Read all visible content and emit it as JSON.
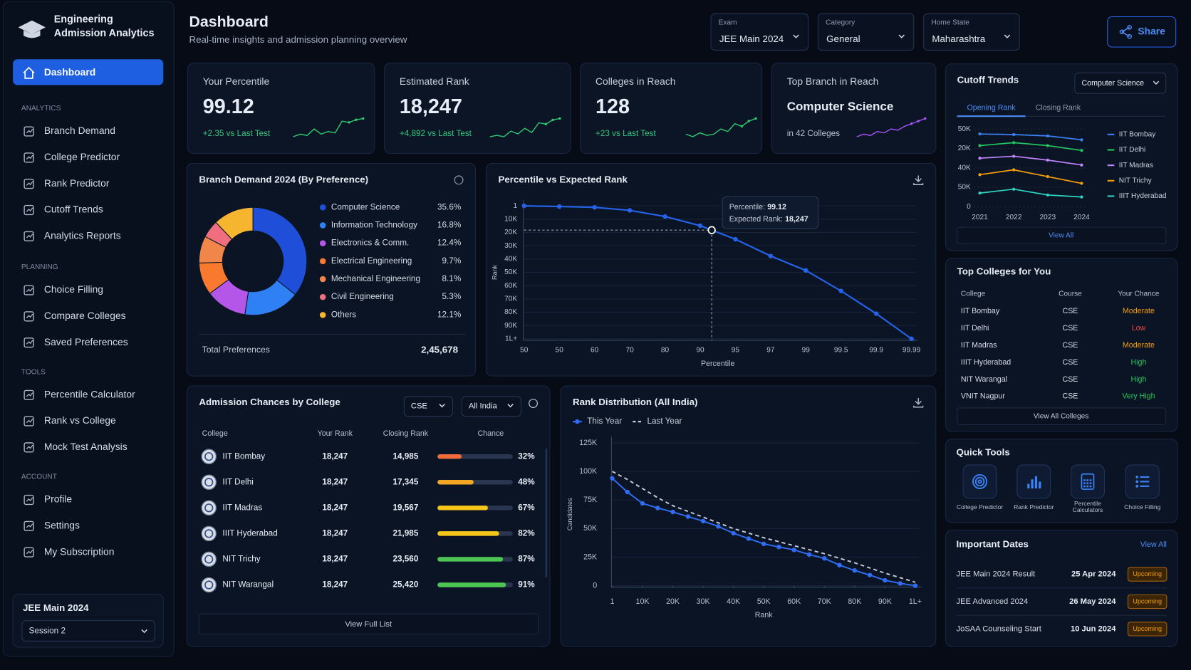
{
  "sidebar": {
    "brand": "Engineering Admission Analytics",
    "active": "Dashboard",
    "groups": [
      {
        "title": "ANALYTICS",
        "items": [
          "Branch Demand",
          "College Predictor",
          "Rank Predictor",
          "Cutoff Trends",
          "Analytics Reports"
        ]
      },
      {
        "title": "PLANNING",
        "items": [
          "Choice Filling",
          "Compare Colleges",
          "Saved Preferences"
        ]
      },
      {
        "title": "TOOLS",
        "items": [
          "Percentile Calculator",
          "Rank vs College",
          "Mock Test Analysis"
        ]
      },
      {
        "title": "ACCOUNT",
        "items": [
          "Profile",
          "Settings",
          "My Subscription"
        ]
      }
    ],
    "exam": {
      "title": "JEE Main 2024",
      "session": "Session 2"
    }
  },
  "header": {
    "title": "Dashboard",
    "subtitle": "Real-time insights and admission planning overview",
    "filters": [
      {
        "label": "Exam",
        "value": "JEE Main 2024"
      },
      {
        "label": "Category",
        "value": "General"
      },
      {
        "label": "Home State",
        "value": "Maharashtra"
      }
    ],
    "share": "Share"
  },
  "kpis": [
    {
      "label": "Your Percentile",
      "value": "99.12",
      "delta": "+2.35 vs Last Test",
      "color": "#2ecc71",
      "delta_color": "#34c77b",
      "spark": [
        2,
        3,
        2.5,
        5,
        3,
        4,
        3.5,
        8,
        7.5,
        8.5,
        9
      ]
    },
    {
      "label": "Estimated Rank",
      "value": "18,247",
      "delta": "+4,892 vs Last Test",
      "color": "#2ecc71",
      "delta_color": "#34c77b",
      "spark": [
        2,
        2.5,
        2,
        4,
        3,
        5,
        3.5,
        7,
        6.5,
        8,
        8.5
      ]
    },
    {
      "label": "Colleges in Reach",
      "value": "128",
      "delta": "+23 vs Last Test",
      "color": "#2ecc71",
      "delta_color": "#34c77b",
      "spark": [
        3,
        2,
        3.5,
        2.5,
        3,
        5,
        4,
        7,
        6,
        8,
        9
      ]
    },
    {
      "label": "Top Branch in Reach",
      "value": "Computer Science",
      "delta": "in 42 Colleges",
      "color": "#a855f7",
      "delta_color": "#b7c0cf",
      "spark": [
        2,
        3,
        2.5,
        4,
        3.5,
        5,
        4.5,
        6,
        7,
        8,
        9
      ]
    }
  ],
  "chart_data": [
    {
      "type": "pie",
      "title": "Branch Demand 2024 (By Preference)",
      "categories": [
        "Computer Science",
        "Information Technology",
        "Electronics & Comm.",
        "Electrical Engineering",
        "Mechanical Engineering",
        "Civil Engineering",
        "Others"
      ],
      "values": [
        35.6,
        16.8,
        12.4,
        9.7,
        8.1,
        5.3,
        12.1
      ],
      "value_labels": [
        "35.6%",
        "16.8%",
        "12.4%",
        "9.7%",
        "8.1%",
        "5.3%",
        "12.1%"
      ],
      "colors": [
        "#1f4fd8",
        "#2f80f5",
        "#b457e8",
        "#f97a2e",
        "#f0864a",
        "#ef6f7e",
        "#f5b52e"
      ],
      "total_label": "Total Preferences",
      "total": "2,45,678"
    },
    {
      "type": "line",
      "title": "Percentile vs Expected Rank",
      "categories": [
        "50",
        "50",
        "60",
        "70",
        "80",
        "90",
        "95",
        "97",
        "99",
        "99.5",
        "99.9",
        "99.99"
      ],
      "values": [
        1,
        500,
        1100,
        3400,
        8000,
        14900,
        25100,
        37700,
        48600,
        64000,
        81100,
        100000
      ],
      "color": "#2563eb",
      "ylim": [
        1,
        100000
      ],
      "y_inverted": true,
      "yticks": [
        1,
        {
          "value": 10000,
          "label": "10K"
        },
        {
          "value": 20000,
          "label": "20K"
        },
        {
          "value": 30000,
          "label": "30K"
        },
        {
          "value": 40000,
          "label": "40K"
        },
        {
          "value": 50000,
          "label": "50K"
        },
        {
          "value": 60000,
          "label": "60K"
        },
        {
          "value": 70000,
          "label": "70K"
        },
        {
          "value": 80000,
          "label": "80K"
        },
        {
          "value": 90000,
          "label": "90K"
        },
        {
          "value": 100000,
          "label": "1L+"
        }
      ],
      "grid": true,
      "xlabel": "Percentile",
      "ylabel": "Rank",
      "annotation": {
        "percentile_label": "Percentile:",
        "percentile": "99.12",
        "rank_label": "Expected Rank:",
        "rank": {
          "value": 18247,
          "label": "18,247"
        }
      }
    },
    {
      "type": "line",
      "title": "Cutoff Trends",
      "filter": "Computer Science",
      "tabs": [
        "Opening Rank",
        "Closing Rank"
      ],
      "categories": [
        "2021",
        "2022",
        "2023",
        "2024"
      ],
      "y_categories": [
        "0",
        "50K",
        "40K",
        "20K",
        "50K"
      ],
      "series": [
        {
          "name": "IIT Bombay",
          "color": "#3b82f6",
          "values": [
            3.75,
            3.72,
            3.65,
            3.45
          ]
        },
        {
          "name": "IIT Delhi",
          "color": "#22c55e",
          "values": [
            3.15,
            3.3,
            3.15,
            2.9
          ]
        },
        {
          "name": "IIT Madras",
          "color": "#c084fc",
          "values": [
            2.5,
            2.6,
            2.4,
            2.15
          ]
        },
        {
          "name": "NIT Trichy",
          "color": "#f59e0b",
          "values": [
            1.65,
            1.9,
            1.55,
            1.2
          ]
        },
        {
          "name": "IIIT Hyderabad",
          "color": "#2dd4bf",
          "values": [
            0.7,
            0.9,
            0.6,
            0.5
          ]
        }
      ],
      "legend": "right",
      "grid": true,
      "link": "View All"
    },
    {
      "type": "line",
      "title": "Rank Distribution (All India)",
      "x": [
        1,
        5000,
        10000,
        15000,
        20000,
        25000,
        30000,
        35000,
        40000,
        45000,
        50000,
        55000,
        60000,
        65000,
        70000,
        75000,
        80000,
        85000,
        90000,
        95000,
        100000
      ],
      "xlim": [
        1,
        100000
      ],
      "xticks": [
        1,
        {
          "value": 10000,
          "label": "10K"
        },
        {
          "value": 20000,
          "label": "20K"
        },
        {
          "value": 30000,
          "label": "30K"
        },
        {
          "value": 40000,
          "label": "40K"
        },
        {
          "value": 50000,
          "label": "50K"
        },
        {
          "value": 60000,
          "label": "60K"
        },
        {
          "value": 70000,
          "label": "70K"
        },
        {
          "value": 80000,
          "label": "80K"
        },
        {
          "value": 90000,
          "label": "90K"
        },
        {
          "value": 100000,
          "label": "1L+"
        }
      ],
      "ylim": [
        0,
        125000
      ],
      "yticks": [
        0,
        {
          "value": 25000,
          "label": "25K"
        },
        {
          "value": 50000,
          "label": "50K"
        },
        {
          "value": 75000,
          "label": "75K"
        },
        {
          "value": 100000,
          "label": "100K"
        },
        {
          "value": 125000,
          "label": "125K"
        }
      ],
      "xlabel": "Rank",
      "ylabel": "Candidates",
      "grid": true,
      "legend": "top-left",
      "series": [
        {
          "name": "This Year",
          "color": "#2f6df6",
          "values": [
            94000,
            82000,
            72000,
            68000,
            64500,
            60500,
            56500,
            51900,
            45900,
            41200,
            36600,
            33900,
            31300,
            27300,
            23900,
            18000,
            13300,
            9300,
            4700,
            2000,
            0
          ]
        },
        {
          "name": "Last Year",
          "color": "#c7cdd8",
          "style": "dashed",
          "markers": false,
          "values": [
            100000,
            93000,
            85000,
            77000,
            70000,
            65000,
            60000,
            55000,
            50000,
            46000,
            42000,
            38500,
            35000,
            31500,
            28000,
            24000,
            20000,
            15500,
            11000,
            7000,
            3000
          ]
        }
      ]
    }
  ],
  "admission_chances": {
    "title": "Admission Chances by College",
    "filters": [
      "CSE",
      "All India"
    ],
    "columns": [
      "College",
      "Your Rank",
      "Closing Rank",
      "Chance"
    ],
    "rows": [
      {
        "college": "IIT Bombay",
        "your_rank": "18,247",
        "closing_rank": "14,985",
        "chance": 32,
        "chance_label": "32%",
        "color": "#f26b3a"
      },
      {
        "college": "IIT Delhi",
        "your_rank": "18,247",
        "closing_rank": "17,345",
        "chance": 48,
        "chance_label": "48%",
        "color": "#f5a623"
      },
      {
        "college": "IIT Madras",
        "your_rank": "18,247",
        "closing_rank": "19,567",
        "chance": 67,
        "chance_label": "67%",
        "color": "#f5c518"
      },
      {
        "college": "IIIT Hyderabad",
        "your_rank": "18,247",
        "closing_rank": "21,985",
        "chance": 82,
        "chance_label": "82%",
        "color": "#f5c518"
      },
      {
        "college": "NIT Trichy",
        "your_rank": "18,247",
        "closing_rank": "23,560",
        "chance": 87,
        "chance_label": "87%",
        "color": "#4cc552"
      },
      {
        "college": "NIT Warangal",
        "your_rank": "18,247",
        "closing_rank": "25,420",
        "chance": 91,
        "chance_label": "91%",
        "color": "#4cc552"
      }
    ],
    "link": "View Full List"
  },
  "top_colleges": {
    "title": "Top Colleges for You",
    "columns": [
      "College",
      "Course",
      "Your Chance"
    ],
    "rows": [
      {
        "college": "IIT Bombay",
        "course": "CSE",
        "chance": "Moderate",
        "color": "#f59e0b"
      },
      {
        "college": "IIT Delhi",
        "course": "CSE",
        "chance": "Low",
        "color": "#ef4444"
      },
      {
        "college": "IIT Madras",
        "course": "CSE",
        "chance": "Moderate",
        "color": "#f59e0b"
      },
      {
        "college": "IIIT Hyderabad",
        "course": "CSE",
        "chance": "High",
        "color": "#22c55e"
      },
      {
        "college": "NIT Warangal",
        "course": "CSE",
        "chance": "High",
        "color": "#22c55e"
      },
      {
        "college": "VNIT Nagpur",
        "course": "CSE",
        "chance": "Very High",
        "color": "#22c55e"
      }
    ],
    "link": "View All Colleges"
  },
  "quick_tools": {
    "title": "Quick Tools",
    "items": [
      "College Predictor",
      "Rank Predictor",
      "Percentile Calculators",
      "Choice Filling"
    ]
  },
  "important_dates": {
    "title": "Important Dates",
    "link": "View All",
    "rows": [
      {
        "event": "JEE Main 2024 Result",
        "date": "25 Apr 2024",
        "status": "Upcoming"
      },
      {
        "event": "JEE Advanced 2024",
        "date": "26 May 2024",
        "status": "Upcoming"
      },
      {
        "event": "JoSAA Counseling Start",
        "date": "10 Jun 2024",
        "status": "Upcoming"
      }
    ]
  }
}
